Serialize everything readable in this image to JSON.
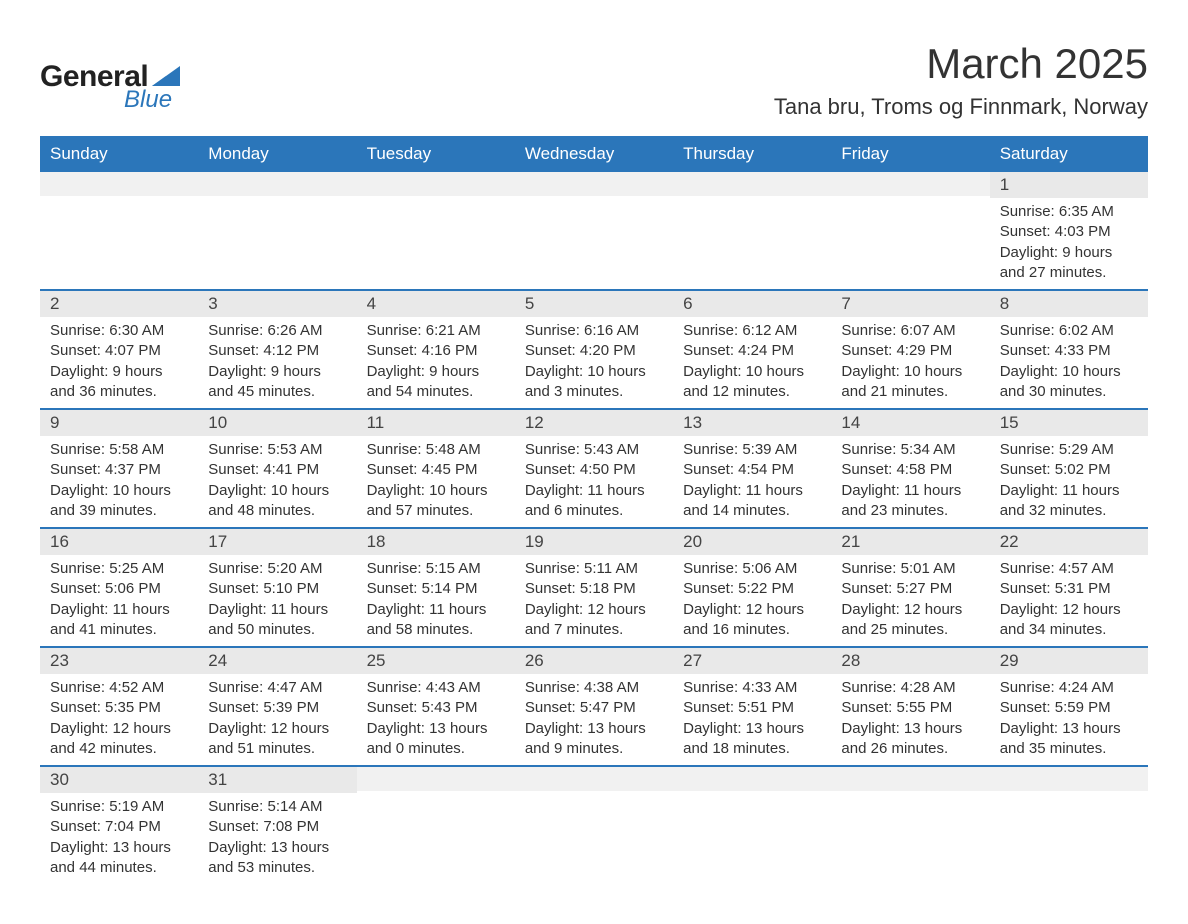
{
  "brand": {
    "name1": "General",
    "name2": "Blue",
    "triangle_color": "#2b76ba"
  },
  "title": "March 2025",
  "location": "Tana bru, Troms og Finnmark, Norway",
  "colors": {
    "header_bg": "#2b76ba",
    "header_text": "#ffffff",
    "daynum_bg": "#e9e9e9",
    "row_border": "#2b76ba",
    "text": "#333333"
  },
  "typography": {
    "title_fontsize": 42,
    "location_fontsize": 22,
    "dow_fontsize": 17,
    "daynum_fontsize": 17,
    "body_fontsize": 15
  },
  "days_of_week": [
    "Sunday",
    "Monday",
    "Tuesday",
    "Wednesday",
    "Thursday",
    "Friday",
    "Saturday"
  ],
  "weeks": [
    [
      {
        "empty": true
      },
      {
        "empty": true
      },
      {
        "empty": true
      },
      {
        "empty": true
      },
      {
        "empty": true
      },
      {
        "empty": true
      },
      {
        "day": "1",
        "sunrise": "Sunrise: 6:35 AM",
        "sunset": "Sunset: 4:03 PM",
        "daylight1": "Daylight: 9 hours",
        "daylight2": "and 27 minutes."
      }
    ],
    [
      {
        "day": "2",
        "sunrise": "Sunrise: 6:30 AM",
        "sunset": "Sunset: 4:07 PM",
        "daylight1": "Daylight: 9 hours",
        "daylight2": "and 36 minutes."
      },
      {
        "day": "3",
        "sunrise": "Sunrise: 6:26 AM",
        "sunset": "Sunset: 4:12 PM",
        "daylight1": "Daylight: 9 hours",
        "daylight2": "and 45 minutes."
      },
      {
        "day": "4",
        "sunrise": "Sunrise: 6:21 AM",
        "sunset": "Sunset: 4:16 PM",
        "daylight1": "Daylight: 9 hours",
        "daylight2": "and 54 minutes."
      },
      {
        "day": "5",
        "sunrise": "Sunrise: 6:16 AM",
        "sunset": "Sunset: 4:20 PM",
        "daylight1": "Daylight: 10 hours",
        "daylight2": "and 3 minutes."
      },
      {
        "day": "6",
        "sunrise": "Sunrise: 6:12 AM",
        "sunset": "Sunset: 4:24 PM",
        "daylight1": "Daylight: 10 hours",
        "daylight2": "and 12 minutes."
      },
      {
        "day": "7",
        "sunrise": "Sunrise: 6:07 AM",
        "sunset": "Sunset: 4:29 PM",
        "daylight1": "Daylight: 10 hours",
        "daylight2": "and 21 minutes."
      },
      {
        "day": "8",
        "sunrise": "Sunrise: 6:02 AM",
        "sunset": "Sunset: 4:33 PM",
        "daylight1": "Daylight: 10 hours",
        "daylight2": "and 30 minutes."
      }
    ],
    [
      {
        "day": "9",
        "sunrise": "Sunrise: 5:58 AM",
        "sunset": "Sunset: 4:37 PM",
        "daylight1": "Daylight: 10 hours",
        "daylight2": "and 39 minutes."
      },
      {
        "day": "10",
        "sunrise": "Sunrise: 5:53 AM",
        "sunset": "Sunset: 4:41 PM",
        "daylight1": "Daylight: 10 hours",
        "daylight2": "and 48 minutes."
      },
      {
        "day": "11",
        "sunrise": "Sunrise: 5:48 AM",
        "sunset": "Sunset: 4:45 PM",
        "daylight1": "Daylight: 10 hours",
        "daylight2": "and 57 minutes."
      },
      {
        "day": "12",
        "sunrise": "Sunrise: 5:43 AM",
        "sunset": "Sunset: 4:50 PM",
        "daylight1": "Daylight: 11 hours",
        "daylight2": "and 6 minutes."
      },
      {
        "day": "13",
        "sunrise": "Sunrise: 5:39 AM",
        "sunset": "Sunset: 4:54 PM",
        "daylight1": "Daylight: 11 hours",
        "daylight2": "and 14 minutes."
      },
      {
        "day": "14",
        "sunrise": "Sunrise: 5:34 AM",
        "sunset": "Sunset: 4:58 PM",
        "daylight1": "Daylight: 11 hours",
        "daylight2": "and 23 minutes."
      },
      {
        "day": "15",
        "sunrise": "Sunrise: 5:29 AM",
        "sunset": "Sunset: 5:02 PM",
        "daylight1": "Daylight: 11 hours",
        "daylight2": "and 32 minutes."
      }
    ],
    [
      {
        "day": "16",
        "sunrise": "Sunrise: 5:25 AM",
        "sunset": "Sunset: 5:06 PM",
        "daylight1": "Daylight: 11 hours",
        "daylight2": "and 41 minutes."
      },
      {
        "day": "17",
        "sunrise": "Sunrise: 5:20 AM",
        "sunset": "Sunset: 5:10 PM",
        "daylight1": "Daylight: 11 hours",
        "daylight2": "and 50 minutes."
      },
      {
        "day": "18",
        "sunrise": "Sunrise: 5:15 AM",
        "sunset": "Sunset: 5:14 PM",
        "daylight1": "Daylight: 11 hours",
        "daylight2": "and 58 minutes."
      },
      {
        "day": "19",
        "sunrise": "Sunrise: 5:11 AM",
        "sunset": "Sunset: 5:18 PM",
        "daylight1": "Daylight: 12 hours",
        "daylight2": "and 7 minutes."
      },
      {
        "day": "20",
        "sunrise": "Sunrise: 5:06 AM",
        "sunset": "Sunset: 5:22 PM",
        "daylight1": "Daylight: 12 hours",
        "daylight2": "and 16 minutes."
      },
      {
        "day": "21",
        "sunrise": "Sunrise: 5:01 AM",
        "sunset": "Sunset: 5:27 PM",
        "daylight1": "Daylight: 12 hours",
        "daylight2": "and 25 minutes."
      },
      {
        "day": "22",
        "sunrise": "Sunrise: 4:57 AM",
        "sunset": "Sunset: 5:31 PM",
        "daylight1": "Daylight: 12 hours",
        "daylight2": "and 34 minutes."
      }
    ],
    [
      {
        "day": "23",
        "sunrise": "Sunrise: 4:52 AM",
        "sunset": "Sunset: 5:35 PM",
        "daylight1": "Daylight: 12 hours",
        "daylight2": "and 42 minutes."
      },
      {
        "day": "24",
        "sunrise": "Sunrise: 4:47 AM",
        "sunset": "Sunset: 5:39 PM",
        "daylight1": "Daylight: 12 hours",
        "daylight2": "and 51 minutes."
      },
      {
        "day": "25",
        "sunrise": "Sunrise: 4:43 AM",
        "sunset": "Sunset: 5:43 PM",
        "daylight1": "Daylight: 13 hours",
        "daylight2": "and 0 minutes."
      },
      {
        "day": "26",
        "sunrise": "Sunrise: 4:38 AM",
        "sunset": "Sunset: 5:47 PM",
        "daylight1": "Daylight: 13 hours",
        "daylight2": "and 9 minutes."
      },
      {
        "day": "27",
        "sunrise": "Sunrise: 4:33 AM",
        "sunset": "Sunset: 5:51 PM",
        "daylight1": "Daylight: 13 hours",
        "daylight2": "and 18 minutes."
      },
      {
        "day": "28",
        "sunrise": "Sunrise: 4:28 AM",
        "sunset": "Sunset: 5:55 PM",
        "daylight1": "Daylight: 13 hours",
        "daylight2": "and 26 minutes."
      },
      {
        "day": "29",
        "sunrise": "Sunrise: 4:24 AM",
        "sunset": "Sunset: 5:59 PM",
        "daylight1": "Daylight: 13 hours",
        "daylight2": "and 35 minutes."
      }
    ],
    [
      {
        "day": "30",
        "sunrise": "Sunrise: 5:19 AM",
        "sunset": "Sunset: 7:04 PM",
        "daylight1": "Daylight: 13 hours",
        "daylight2": "and 44 minutes."
      },
      {
        "day": "31",
        "sunrise": "Sunrise: 5:14 AM",
        "sunset": "Sunset: 7:08 PM",
        "daylight1": "Daylight: 13 hours",
        "daylight2": "and 53 minutes."
      },
      {
        "empty": true
      },
      {
        "empty": true
      },
      {
        "empty": true
      },
      {
        "empty": true
      },
      {
        "empty": true
      }
    ]
  ]
}
